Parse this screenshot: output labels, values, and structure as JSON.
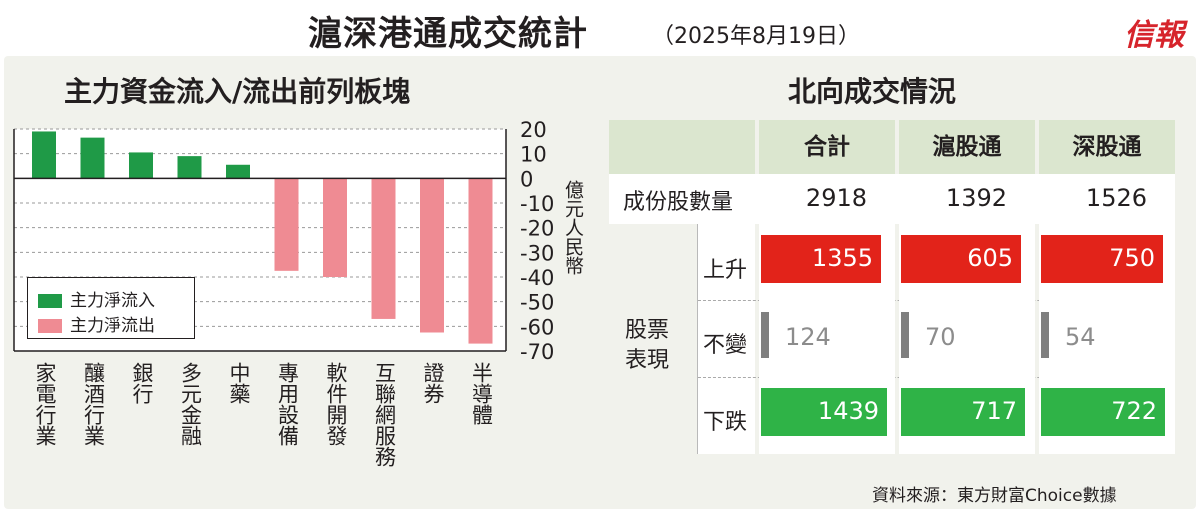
{
  "header": {
    "title": "滬深港通成交統計",
    "date": "（2025年8月19日）",
    "brand": "信報"
  },
  "left": {
    "title": "主力資金流入/流出前列板塊",
    "unit": "億元人民幣",
    "legend": {
      "inflow": "主力淨流入",
      "outflow": "主力淨流出"
    }
  },
  "chart_data": {
    "type": "bar",
    "title": "主力資金流入/流出前列板塊",
    "ylabel": "億元人民幣",
    "ylim": [
      -70,
      20
    ],
    "yticks": [
      20,
      10,
      0,
      -10,
      -20,
      -30,
      -40,
      -50,
      -60,
      -70
    ],
    "ytick_labels": [
      "20",
      "10",
      "0",
      "-10",
      "-20",
      "-30",
      "-40",
      "-50",
      "-60",
      "-70"
    ],
    "grid": true,
    "legend_position": "bottom-left",
    "categories": [
      "家電行業",
      "釀酒行業",
      "銀行",
      "多元金融",
      "中藥",
      "專用設備",
      "軟件開發",
      "互聯網服務",
      "證券",
      "半導體"
    ],
    "values": [
      19,
      16.5,
      10.5,
      9,
      5.5,
      -37.5,
      -40,
      -57,
      -62.5,
      -67
    ],
    "series": [
      {
        "name": "主力淨流入",
        "color": "#1f9a47"
      },
      {
        "name": "主力淨流出",
        "color": "#ef8b93"
      }
    ]
  },
  "right": {
    "title": "北向成交情況",
    "columns": [
      "合計",
      "滬股通",
      "深股通"
    ],
    "count_label": "成份股數量",
    "counts": [
      "2918",
      "1392",
      "1526"
    ],
    "group_label_1": "股票",
    "group_label_2": "表現",
    "rows": {
      "up": {
        "label": "上升",
        "values": [
          1355,
          605,
          750
        ]
      },
      "flat": {
        "label": "不變",
        "values": [
          124,
          70,
          54
        ]
      },
      "down": {
        "label": "下跌",
        "values": [
          1439,
          717,
          722
        ]
      }
    },
    "colors": {
      "up": "#e2231a",
      "flat": "#7f7f7f",
      "down": "#2fb347",
      "header": "#dbe6cf"
    }
  },
  "source": "資料來源：東方財富Choice數據"
}
